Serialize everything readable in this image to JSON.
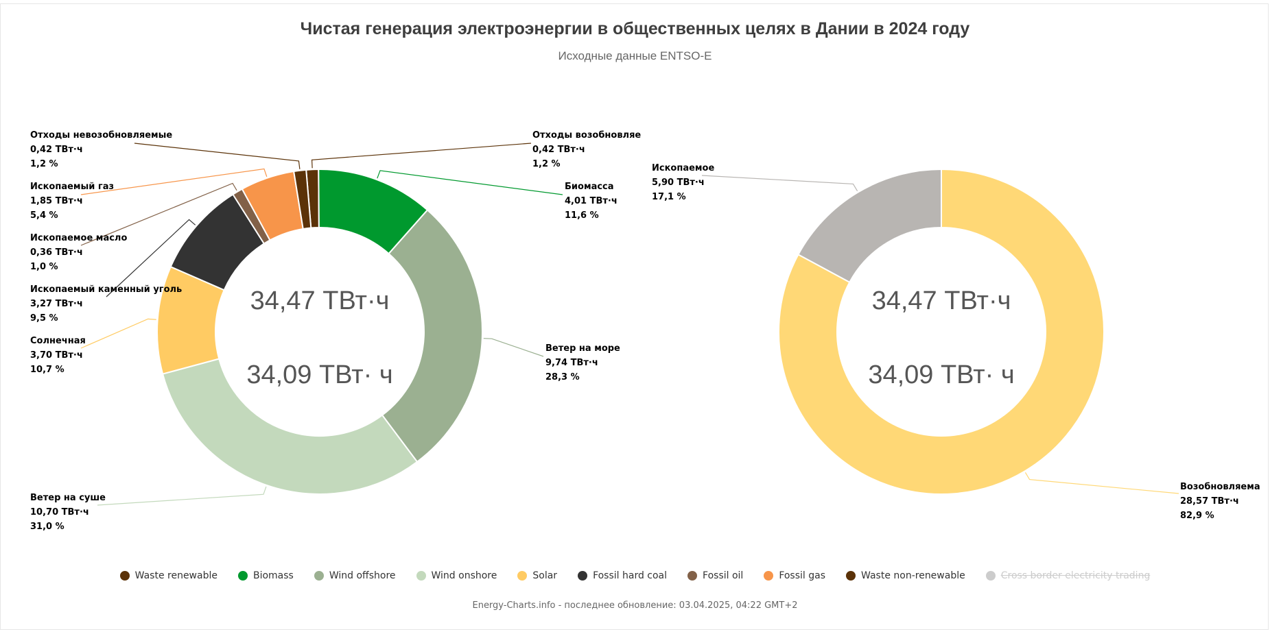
{
  "page": {
    "title": "Чистая генерация электроэнергии в общественных целях в Дании в 2024 году",
    "subtitle": "Исходные данные ENTSO-E",
    "footer": "Energy-Charts.info - последнее обновление: 03.04.2025, 04:22 GMT+2"
  },
  "chart_data": [
    {
      "type": "pie",
      "variant": "donut",
      "center_values": [
        "34,47 ТВт·ч",
        "34,09 ТВт· ч"
      ],
      "slices": [
        {
          "key": "waste_renewable",
          "label": "Отходы возобновляе",
          "value_text": "0,42 ТВт·ч",
          "percent_text": "1,2 %",
          "value": 0.42,
          "percent": 1.2,
          "color": "#5b3208"
        },
        {
          "key": "biomass",
          "label": "Биомасса",
          "value_text": "4,01 ТВт·ч",
          "percent_text": "11,6 %",
          "value": 4.01,
          "percent": 11.6,
          "color": "#00992e"
        },
        {
          "key": "wind_offshore",
          "label": "Ветер на море",
          "value_text": "9,74 ТВт·ч",
          "percent_text": "28,3 %",
          "value": 9.74,
          "percent": 28.3,
          "color": "#9bb091"
        },
        {
          "key": "wind_onshore",
          "label": "Ветер на суше",
          "value_text": "10,70 ТВт·ч",
          "percent_text": "31,0 %",
          "value": 10.7,
          "percent": 31.0,
          "color": "#c3d9bc"
        },
        {
          "key": "solar",
          "label": "Солнечная",
          "value_text": "3,70 ТВт·ч",
          "percent_text": "10,7 %",
          "value": 3.7,
          "percent": 10.7,
          "color": "#ffcb63"
        },
        {
          "key": "fossil_hard_coal",
          "label": "Ископаемый каменный уголь",
          "value_text": "3,27 ТВт·ч",
          "percent_text": "9,5 %",
          "value": 3.27,
          "percent": 9.5,
          "color": "#333333"
        },
        {
          "key": "fossil_oil",
          "label": "Ископаемое масло",
          "value_text": "0,36 ТВт·ч",
          "percent_text": "1,0 %",
          "value": 0.36,
          "percent": 1.0,
          "color": "#826148"
        },
        {
          "key": "fossil_gas",
          "label": "Ископаемый газ",
          "value_text": "1,85 ТВт·ч",
          "percent_text": "5,4 %",
          "value": 1.85,
          "percent": 5.4,
          "color": "#f7954a"
        },
        {
          "key": "waste_non_renewable",
          "label": "Отходы невозобновляемые",
          "value_text": "0,42 ТВт·ч",
          "percent_text": "1,2 %",
          "value": 0.42,
          "percent": 1.2,
          "color": "#5b3208"
        }
      ]
    },
    {
      "type": "pie",
      "variant": "donut",
      "center_values": [
        "34,47 ТВт·ч",
        "34,09 ТВт· ч"
      ],
      "slices": [
        {
          "key": "renewable",
          "label": "Возобновляема",
          "value_text": "28,57 ТВт·ч",
          "percent_text": "82,9 %",
          "value": 28.57,
          "percent": 82.9,
          "color": "#ffd876"
        },
        {
          "key": "fossil",
          "label": "Ископаемое",
          "value_text": "5,90 ТВт·ч",
          "percent_text": "17,1 %",
          "value": 5.9,
          "percent": 17.1,
          "color": "#b8b5b2"
        }
      ]
    }
  ],
  "legend": [
    {
      "label": "Waste renewable",
      "color": "#5b3208",
      "hidden": false
    },
    {
      "label": "Biomass",
      "color": "#00992e",
      "hidden": false
    },
    {
      "label": "Wind offshore",
      "color": "#9bb091",
      "hidden": false
    },
    {
      "label": "Wind onshore",
      "color": "#c3d9bc",
      "hidden": false
    },
    {
      "label": "Solar",
      "color": "#ffcb63",
      "hidden": false
    },
    {
      "label": "Fossil hard coal",
      "color": "#333333",
      "hidden": false
    },
    {
      "label": "Fossil oil",
      "color": "#826148",
      "hidden": false
    },
    {
      "label": "Fossil gas",
      "color": "#f7954a",
      "hidden": false
    },
    {
      "label": "Waste non-renewable",
      "color": "#5b3208",
      "hidden": false
    },
    {
      "label": "Cross border electricity trading",
      "color": "#cccccc",
      "hidden": true
    }
  ]
}
